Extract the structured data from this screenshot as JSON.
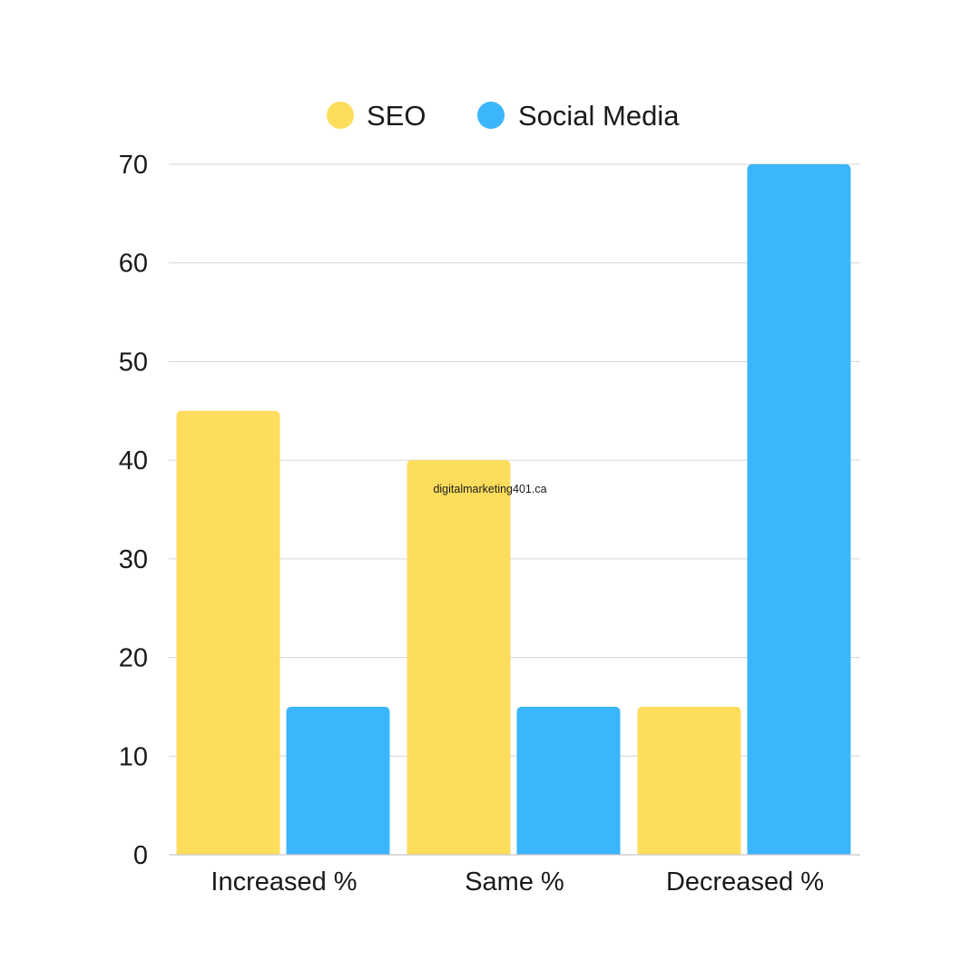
{
  "chart_data": {
    "type": "bar",
    "categories": [
      "Increased %",
      "Same %",
      "Decreased %"
    ],
    "series": [
      {
        "name": "SEO",
        "color": "#FDDD5C",
        "values": [
          45,
          40,
          15
        ]
      },
      {
        "name": "Social Media",
        "color": "#3BB5FC",
        "values": [
          15,
          15,
          70
        ]
      }
    ],
    "yticks": [
      0,
      10,
      20,
      30,
      40,
      50,
      60,
      70
    ],
    "ylim": [
      0,
      70
    ],
    "grid": true,
    "legend_position": "top-center",
    "annotation": "digitalmarketing401.ca"
  }
}
